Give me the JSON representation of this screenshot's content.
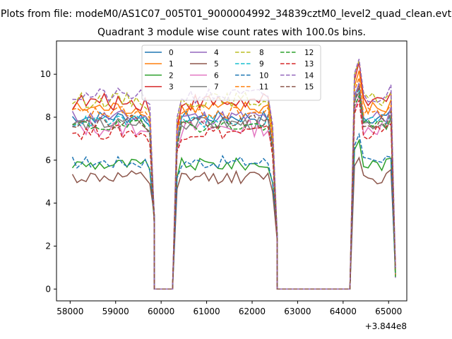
{
  "figure": {
    "suptitle": "Plots from file: modeM0/AS1C07_005T01_9000004992_34839cztM0_level2_quad_clean.evt"
  },
  "chart_data": {
    "type": "line",
    "title": "Quadrant 3 module wise count rates with 100.0s bins.",
    "xlabel": "",
    "ylabel": "",
    "x_offset_label": "+3.844e8",
    "xlim": [
      57700,
      65400
    ],
    "ylim": [
      -0.55,
      11.55
    ],
    "xticks": [
      58000,
      59000,
      60000,
      61000,
      62000,
      63000,
      64000,
      65000
    ],
    "xtick_labels": [
      "58000",
      "59000",
      "60000",
      "61000",
      "62000",
      "63000",
      "64000",
      "65000"
    ],
    "yticks": [
      0,
      2,
      4,
      6,
      8,
      10
    ],
    "ytick_labels": [
      "0",
      "2",
      "4",
      "6",
      "8",
      "10"
    ],
    "grid": false,
    "legend": {
      "placement": "upper-center",
      "columns": 4
    },
    "segments": [
      [
        58050,
        58150,
        58250,
        58350,
        58450,
        58550,
        58650,
        58750,
        58850,
        58950,
        59050,
        59150,
        59250,
        59350,
        59450,
        59550,
        59650,
        59750,
        59850
      ],
      [
        59850,
        59950,
        60050,
        60150,
        60250
      ],
      [
        60250,
        60350,
        60450,
        60550,
        60650,
        60750,
        60850,
        60950,
        61050,
        61150,
        61250,
        61350,
        61450,
        61550,
        61650,
        61750,
        61850,
        61950,
        62050,
        62150,
        62250,
        62350,
        62450,
        62550
      ],
      [
        62550,
        62650,
        62750,
        62850,
        62950,
        63050,
        63150,
        63250,
        63350,
        63450,
        63550,
        63650,
        63750,
        63850,
        63950,
        64050,
        64150
      ],
      [
        64150,
        64250,
        64350,
        64450,
        64550,
        64650,
        64750,
        64850,
        64950,
        65050,
        65150
      ]
    ],
    "series": [
      {
        "name": "0",
        "color": "#1f77b4",
        "dash": false,
        "level": 8.0,
        "noise": 0.3
      },
      {
        "name": "1",
        "color": "#ff7f0e",
        "dash": false,
        "level": 8.4,
        "noise": 0.35
      },
      {
        "name": "2",
        "color": "#2ca02c",
        "dash": false,
        "level": 5.8,
        "noise": 0.3
      },
      {
        "name": "3",
        "color": "#d62728",
        "dash": false,
        "level": 8.7,
        "noise": 0.4
      },
      {
        "name": "4",
        "color": "#9467bd",
        "dash": false,
        "level": 8.0,
        "noise": 0.35
      },
      {
        "name": "5",
        "color": "#8c564b",
        "dash": false,
        "level": 5.2,
        "noise": 0.3
      },
      {
        "name": "6",
        "color": "#e377c2",
        "dash": false,
        "level": 7.5,
        "noise": 0.4
      },
      {
        "name": "7",
        "color": "#7f7f7f",
        "dash": false,
        "level": 7.7,
        "noise": 0.3
      },
      {
        "name": "8",
        "color": "#bcbd22",
        "dash": true,
        "level": 8.8,
        "noise": 0.35
      },
      {
        "name": "9",
        "color": "#17becf",
        "dash": true,
        "level": 7.8,
        "noise": 0.3
      },
      {
        "name": "10",
        "color": "#1f77b4",
        "dash": true,
        "level": 5.9,
        "noise": 0.3
      },
      {
        "name": "11",
        "color": "#ff7f0e",
        "dash": true,
        "level": 8.2,
        "noise": 0.3
      },
      {
        "name": "12",
        "color": "#2ca02c",
        "dash": true,
        "level": 7.6,
        "noise": 0.3
      },
      {
        "name": "13",
        "color": "#d62728",
        "dash": true,
        "level": 7.3,
        "noise": 0.35
      },
      {
        "name": "14",
        "color": "#9467bd",
        "dash": true,
        "level": 9.0,
        "noise": 0.35
      },
      {
        "name": "15",
        "color": "#8c564b",
        "dash": true,
        "level": 7.8,
        "noise": 0.3
      }
    ]
  }
}
